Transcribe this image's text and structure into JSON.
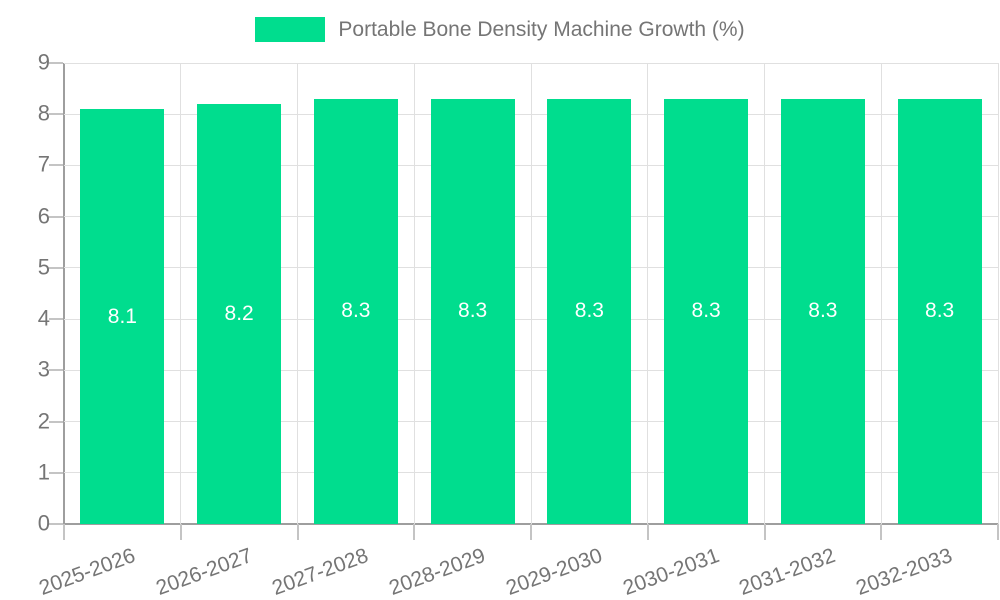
{
  "chart_data": {
    "type": "bar",
    "title": "Portable Bone Density Machine Growth (%)",
    "categories": [
      "2025-2026",
      "2026-2027",
      "2027-2028",
      "2028-2029",
      "2029-2030",
      "2030-2031",
      "2031-2032",
      "2032-2033"
    ],
    "series": [
      {
        "name": "Portable Bone Density Machine Growth (%)",
        "values": [
          8.1,
          8.2,
          8.3,
          8.3,
          8.3,
          8.3,
          8.3,
          8.3
        ]
      }
    ],
    "xlabel": "",
    "ylabel": "",
    "ylim": [
      0,
      9
    ],
    "y_ticks": [
      0,
      1,
      2,
      3,
      4,
      5,
      6,
      7,
      8,
      9
    ],
    "grid": true,
    "legend_position": "top-center",
    "colors": {
      "bar": "#00DD8E",
      "bar_value_label": "#FFFFFF",
      "text": "#757575",
      "axis_line": "#9E9E9E",
      "gridline": "#E0E0E0",
      "tick": "#C4C4C4",
      "background": "#FFFFFF"
    }
  }
}
